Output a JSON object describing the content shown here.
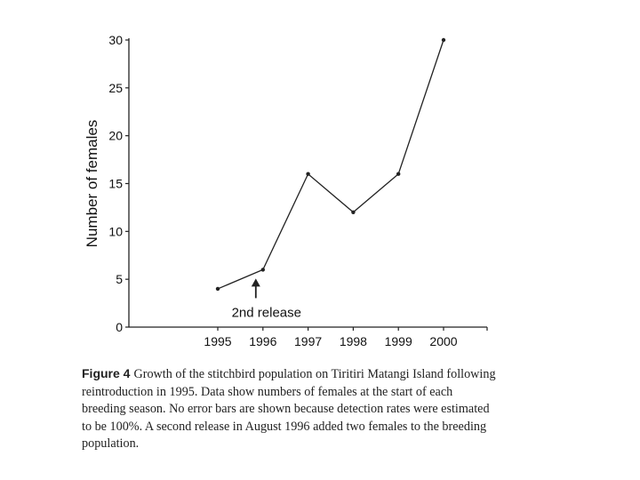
{
  "chart_data": {
    "type": "line",
    "x": [
      "1995",
      "1996",
      "1997",
      "1998",
      "1999",
      "2000"
    ],
    "series": [
      {
        "values": [
          4,
          6,
          16,
          12,
          16,
          30
        ]
      }
    ],
    "xlabel": "",
    "ylabel": "Number of females",
    "ylim": [
      0,
      30
    ],
    "yticks": [
      0,
      5,
      10,
      15,
      20,
      25,
      30
    ],
    "grid": false,
    "annotations": [
      {
        "text": "2nd release",
        "x": "1996",
        "marker": "up-arrow"
      }
    ],
    "colors": {
      "line": "#222222",
      "axis": "#222222"
    }
  },
  "caption": {
    "label": "Figure 4",
    "text": "Growth of the stitchbird population on Tiritiri Matangi Island following reintroduction in 1995. Data show numbers of females at the start of each breeding season. No error bars are shown because detection rates were estimated to be 100%. A second release in August 1996 added two females to the breeding population."
  }
}
